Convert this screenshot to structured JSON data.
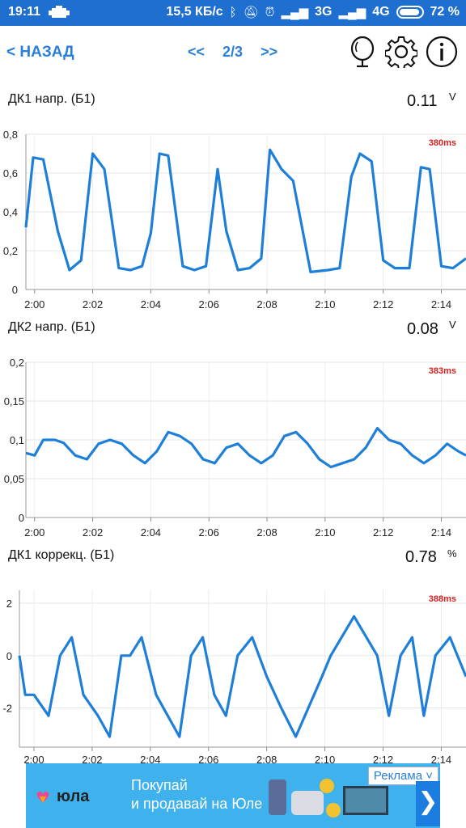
{
  "status": {
    "time": "19:11",
    "speed": "15,5 КБ/с",
    "net1": "3G",
    "net2": "4G",
    "battery": "72 %"
  },
  "toolbar": {
    "back_label": "< НАЗАД",
    "prev_label": "<<",
    "page": "2/3",
    "next_label": ">>"
  },
  "panels": [
    {
      "title": "ДК1 напр. (Б1)",
      "value": "0.11",
      "unit": "V",
      "interval": "380ms"
    },
    {
      "title": "ДК2 напр. (Б1)",
      "value": "0.08",
      "unit": "V",
      "interval": "383ms"
    },
    {
      "title": "ДК1 коррекц. (Б1)",
      "value": "0.78",
      "unit": "%",
      "interval": "388ms"
    }
  ],
  "chart_data": [
    {
      "type": "line",
      "x_ticks": [
        "2:00",
        "2:02",
        "2:04",
        "2:06",
        "2:08",
        "2:10",
        "2:12",
        "2:14"
      ],
      "y_ticks": [
        "0",
        "0,2",
        "0,4",
        "0,6",
        "0,8"
      ],
      "xlim": [
        -0.3,
        14.85
      ],
      "ylim": [
        0,
        0.8
      ],
      "grid": true,
      "color": "#1e7fd8",
      "x": [
        -0.3,
        -0.05,
        0.3,
        0.8,
        1.2,
        1.6,
        2.0,
        2.4,
        2.9,
        3.3,
        3.7,
        4.0,
        4.3,
        4.6,
        5.1,
        5.5,
        5.9,
        6.3,
        6.6,
        7.0,
        7.4,
        7.8,
        8.1,
        8.5,
        8.9,
        9.5,
        10.1,
        10.5,
        10.9,
        11.2,
        11.6,
        12.0,
        12.4,
        12.9,
        13.3,
        13.6,
        14.0,
        14.4,
        14.85
      ],
      "y": [
        0.32,
        0.68,
        0.67,
        0.3,
        0.1,
        0.15,
        0.7,
        0.62,
        0.11,
        0.1,
        0.12,
        0.29,
        0.7,
        0.69,
        0.12,
        0.1,
        0.12,
        0.62,
        0.3,
        0.1,
        0.11,
        0.16,
        0.72,
        0.62,
        0.56,
        0.09,
        0.1,
        0.11,
        0.58,
        0.7,
        0.66,
        0.15,
        0.11,
        0.11,
        0.63,
        0.62,
        0.12,
        0.11,
        0.16
      ]
    },
    {
      "type": "line",
      "x_ticks": [
        "2:00",
        "2:02",
        "2:04",
        "2:06",
        "2:08",
        "2:10",
        "2:12",
        "2:14"
      ],
      "y_ticks": [
        "0",
        "0,05",
        "0,1",
        "0,15",
        "0,2"
      ],
      "xlim": [
        -0.3,
        14.85
      ],
      "ylim": [
        0,
        0.2
      ],
      "grid": true,
      "color": "#1e7fd8",
      "x": [
        -0.3,
        0.0,
        0.3,
        0.7,
        1.0,
        1.4,
        1.8,
        2.2,
        2.6,
        3.0,
        3.4,
        3.8,
        4.2,
        4.6,
        5.0,
        5.4,
        5.8,
        6.2,
        6.6,
        7.0,
        7.4,
        7.8,
        8.2,
        8.6,
        9.0,
        9.4,
        9.8,
        10.2,
        10.6,
        11.0,
        11.4,
        11.8,
        12.2,
        12.6,
        13.0,
        13.4,
        13.8,
        14.2,
        14.6,
        14.85
      ],
      "y": [
        0.083,
        0.08,
        0.1,
        0.1,
        0.096,
        0.08,
        0.075,
        0.095,
        0.1,
        0.095,
        0.08,
        0.07,
        0.085,
        0.11,
        0.105,
        0.095,
        0.075,
        0.07,
        0.09,
        0.095,
        0.08,
        0.07,
        0.08,
        0.105,
        0.11,
        0.095,
        0.075,
        0.065,
        0.07,
        0.075,
        0.09,
        0.115,
        0.1,
        0.095,
        0.08,
        0.07,
        0.08,
        0.095,
        0.085,
        0.08
      ]
    },
    {
      "type": "line",
      "x_ticks": [
        "2:00",
        "2:02",
        "2:04",
        "2:06",
        "2:08",
        "2:10",
        "2:12",
        "2:14"
      ],
      "y_ticks": [
        "-2",
        "0",
        "2"
      ],
      "xlim": [
        -0.5,
        14.85
      ],
      "ylim": [
        -3.5,
        2.5
      ],
      "grid": true,
      "color": "#1e7fd8",
      "x": [
        -0.5,
        -0.3,
        0.0,
        0.5,
        0.9,
        1.3,
        1.7,
        2.2,
        2.6,
        3.0,
        3.3,
        3.7,
        4.2,
        4.6,
        5.0,
        5.4,
        5.8,
        6.2,
        6.6,
        7.0,
        7.5,
        8.0,
        8.5,
        9.0,
        9.9,
        10.2,
        11.0,
        11.8,
        12.2,
        12.6,
        13.0,
        13.4,
        13.8,
        14.3,
        14.85
      ],
      "y": [
        0.0,
        -1.5,
        -1.5,
        -2.3,
        0.0,
        0.7,
        -1.5,
        -2.3,
        -3.1,
        0.0,
        0.0,
        0.7,
        -1.5,
        -2.3,
        -3.1,
        0.0,
        0.7,
        -1.5,
        -2.3,
        0.0,
        0.7,
        -0.8,
        -2.0,
        -3.1,
        -0.8,
        0.0,
        1.5,
        0.0,
        -2.3,
        0.0,
        0.7,
        -2.3,
        0.0,
        0.7,
        -0.8
      ]
    }
  ],
  "ad": {
    "brand": "юла",
    "line1": "Покупай",
    "line2": "и продавай на Юле",
    "tag": "Реклама ˅",
    "next": "❯"
  }
}
